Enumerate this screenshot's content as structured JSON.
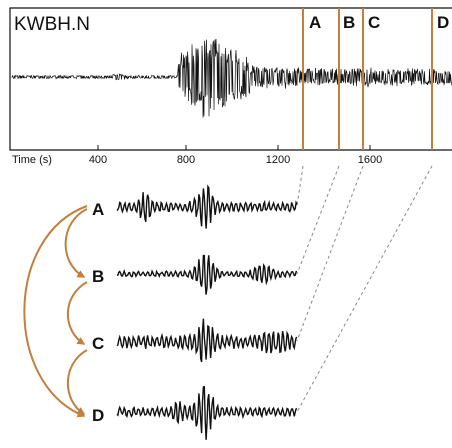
{
  "station": "KWBH.N",
  "axis": {
    "label": "Time (s)",
    "ticks": [
      "400",
      "800",
      "1200",
      "1600"
    ]
  },
  "windows": {
    "labels": [
      "A",
      "B",
      "C",
      "D"
    ]
  },
  "traces": {
    "labels": [
      "A",
      "B",
      "C",
      "D"
    ]
  },
  "colors": {
    "trace": "#111111",
    "window": "#c47f3c",
    "arrow": "#c47f3c",
    "connector": "#888888"
  }
}
